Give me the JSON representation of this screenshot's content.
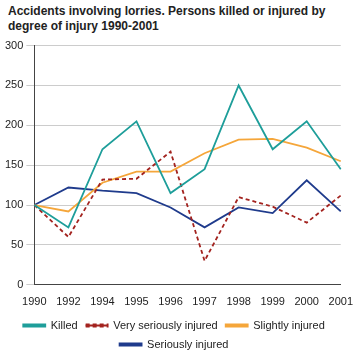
{
  "chart_data": {
    "type": "line",
    "title": "Accidents involving lorries. Persons killed or injured by degree of injury 1990-2001",
    "categories": [
      "1990",
      "1992",
      "1994",
      "1995",
      "1996",
      "1997",
      "1998",
      "1999",
      "2000",
      "2001"
    ],
    "series": [
      {
        "name": "Killed",
        "color": "#1e9e9a",
        "line_style": "solid",
        "values": [
          100,
          72,
          170,
          205,
          115,
          145,
          250,
          170,
          205,
          145
        ]
      },
      {
        "name": "Very seriously injured",
        "color": "#a3231f",
        "line_style": "dashed",
        "values": [
          100,
          60,
          132,
          133,
          167,
          30,
          110,
          98,
          78,
          112
        ]
      },
      {
        "name": "Slightly injured",
        "color": "#f5a63a",
        "line_style": "solid",
        "values": [
          100,
          92,
          128,
          142,
          142,
          165,
          182,
          183,
          172,
          155
        ]
      },
      {
        "name": "Seriously injured",
        "color": "#1f3b8c",
        "line_style": "solid",
        "values": [
          100,
          122,
          118,
          115,
          97,
          72,
          97,
          90,
          131,
          92
        ]
      }
    ],
    "ylim": [
      0,
      300
    ],
    "yticks": [
      0,
      50,
      100,
      150,
      200,
      250,
      300
    ],
    "grid": true,
    "legend": "bottom"
  }
}
